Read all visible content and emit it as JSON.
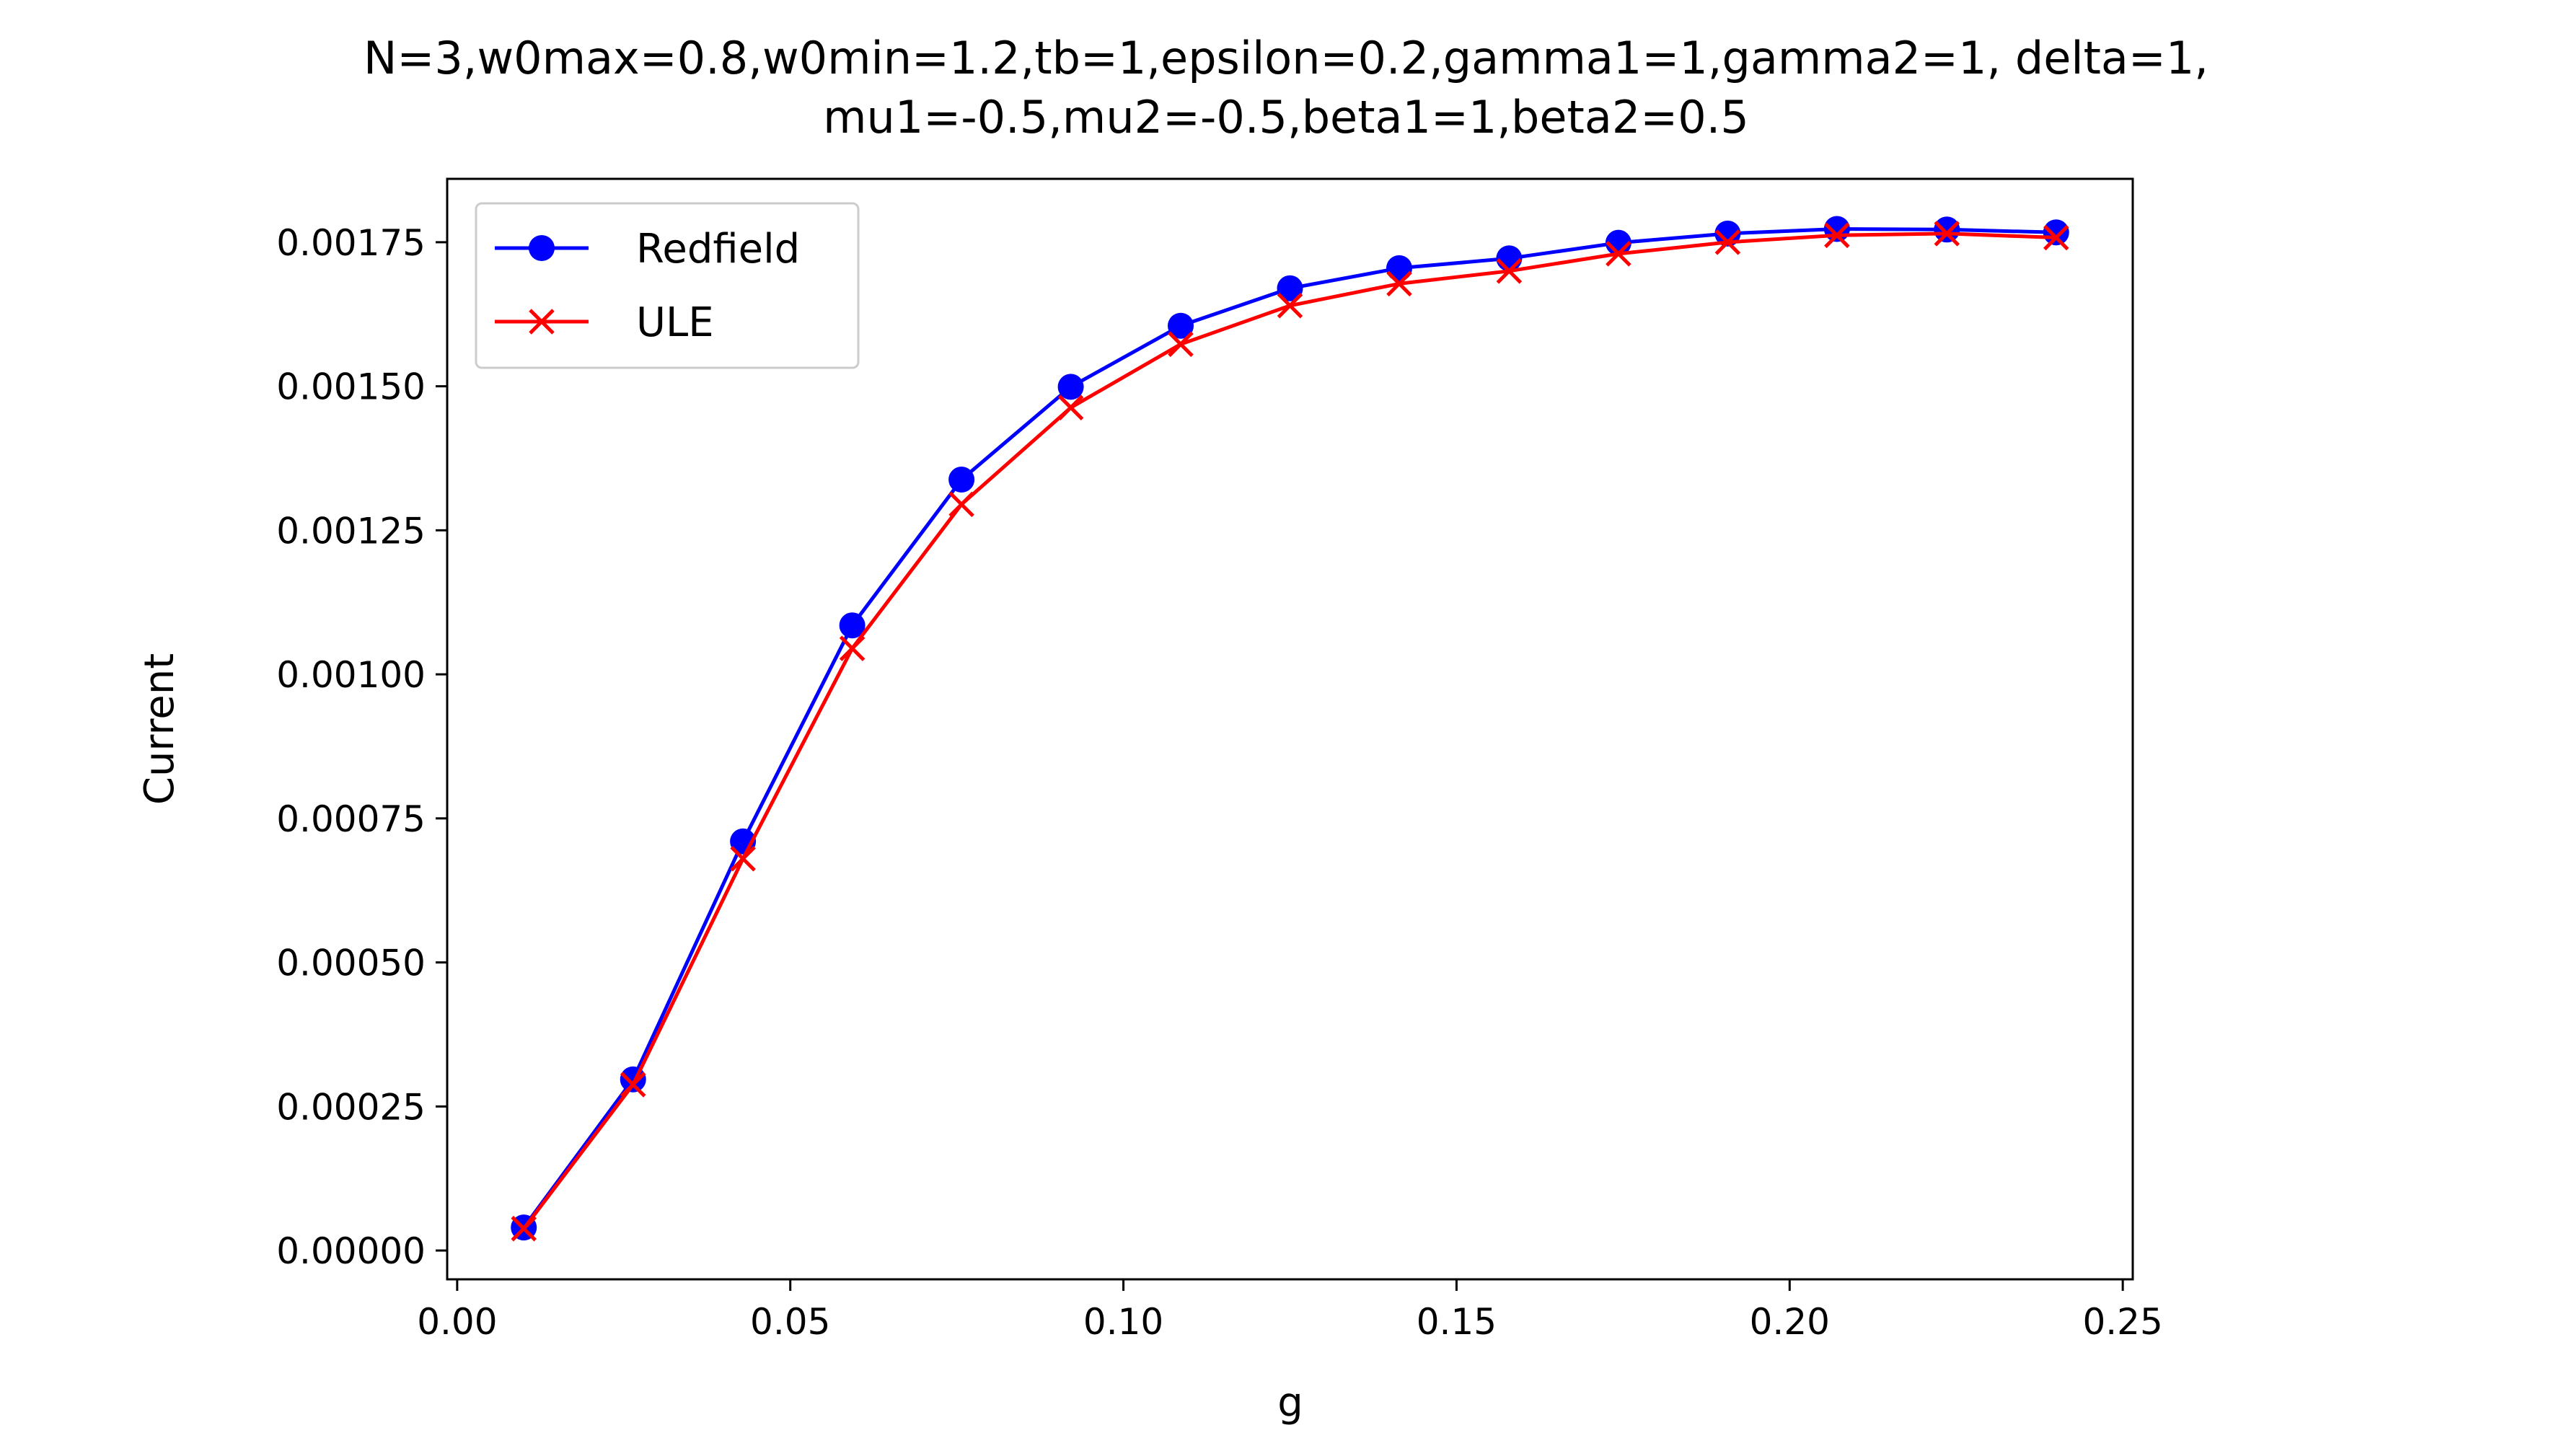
{
  "chart_data": {
    "type": "line",
    "title_lines": [
      "N=3,w0max=0.8,w0min=1.2,tb=1,epsilon=0.2,gamma1=1,gamma2=1, delta=1,",
      "mu1=-0.5,mu2=-0.5,beta1=1,beta2=0.5"
    ],
    "xlabel": "g",
    "ylabel": "Current",
    "xlim": [
      -0.0015,
      0.2515
    ],
    "ylim": [
      -5e-05,
      0.00186
    ],
    "xticks": [
      0.0,
      0.05,
      0.1,
      0.15,
      0.2,
      0.25
    ],
    "xtick_labels": [
      "0.00",
      "0.05",
      "0.10",
      "0.15",
      "0.20",
      "0.25"
    ],
    "yticks": [
      0,
      0.00025,
      0.0005,
      0.00075,
      0.001,
      0.00125,
      0.0015,
      0.00175
    ],
    "ytick_labels": [
      "0.00000",
      "0.00025",
      "0.00050",
      "0.00075",
      "0.00100",
      "0.00125",
      "0.00150",
      "0.00175"
    ],
    "grid": false,
    "legend_position": "upper-left",
    "x": [
      0.01,
      0.0264,
      0.0429,
      0.0593,
      0.0757,
      0.0921,
      0.1086,
      0.125,
      0.1414,
      0.1579,
      0.1743,
      0.1907,
      0.2071,
      0.2236,
      0.24
    ],
    "series": [
      {
        "name": "Redfield",
        "color": "#0000ff",
        "marker": "circle",
        "values": [
          4e-05,
          0.000297,
          0.00071,
          0.001085,
          0.001338,
          0.001499,
          0.001605,
          0.00167,
          0.001705,
          0.001722,
          0.001749,
          0.001765,
          0.001773,
          0.001772,
          0.001767
        ]
      },
      {
        "name": "ULE",
        "color": "#ff0000",
        "marker": "x",
        "values": [
          3.8e-05,
          0.000288,
          0.00068,
          0.001045,
          0.001295,
          0.001463,
          0.001573,
          0.00164,
          0.001678,
          0.0017,
          0.00173,
          0.00175,
          0.001762,
          0.001765,
          0.001758
        ]
      }
    ]
  }
}
